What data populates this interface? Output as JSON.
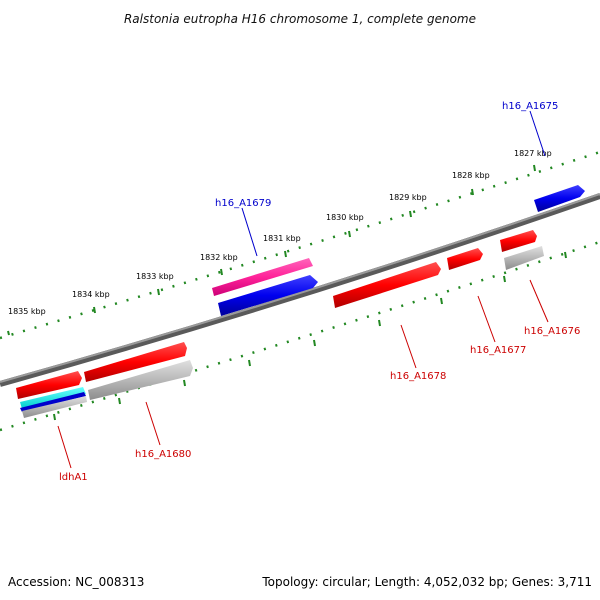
{
  "title": "Ralstonia eutropha H16 chromosome 1, complete genome",
  "footer": {
    "accession": "Accession: NC_008313",
    "summary": "Topology: circular; Length: 4,052,032 bp; Genes: 3,711"
  },
  "scale_labels": [
    "1827 kbp",
    "1828 kbp",
    "1829 kbp",
    "1830 kbp",
    "1831 kbp",
    "1832 kbp",
    "1833 kbp",
    "1834 kbp",
    "1835 kbp"
  ],
  "colors": {
    "forward_gene": "#ff0000",
    "reverse_gene": "#0000ee",
    "rrna_gene": "#ff2299",
    "cds": "#b8b8b8",
    "backbone": "#888888",
    "tick": "#228822",
    "forward_label": "#cc0000",
    "reverse_label": "#0000cc"
  },
  "genes": [
    {
      "name": "h16_A1675",
      "strand": "reverse"
    },
    {
      "name": "h16_A1676",
      "strand": "forward"
    },
    {
      "name": "h16_A1677",
      "strand": "forward"
    },
    {
      "name": "h16_A1678",
      "strand": "forward"
    },
    {
      "name": "h16_A1679",
      "strand": "reverse"
    },
    {
      "name": "h16_A1680",
      "strand": "forward"
    },
    {
      "name": "ldhA1",
      "strand": "forward"
    }
  ]
}
